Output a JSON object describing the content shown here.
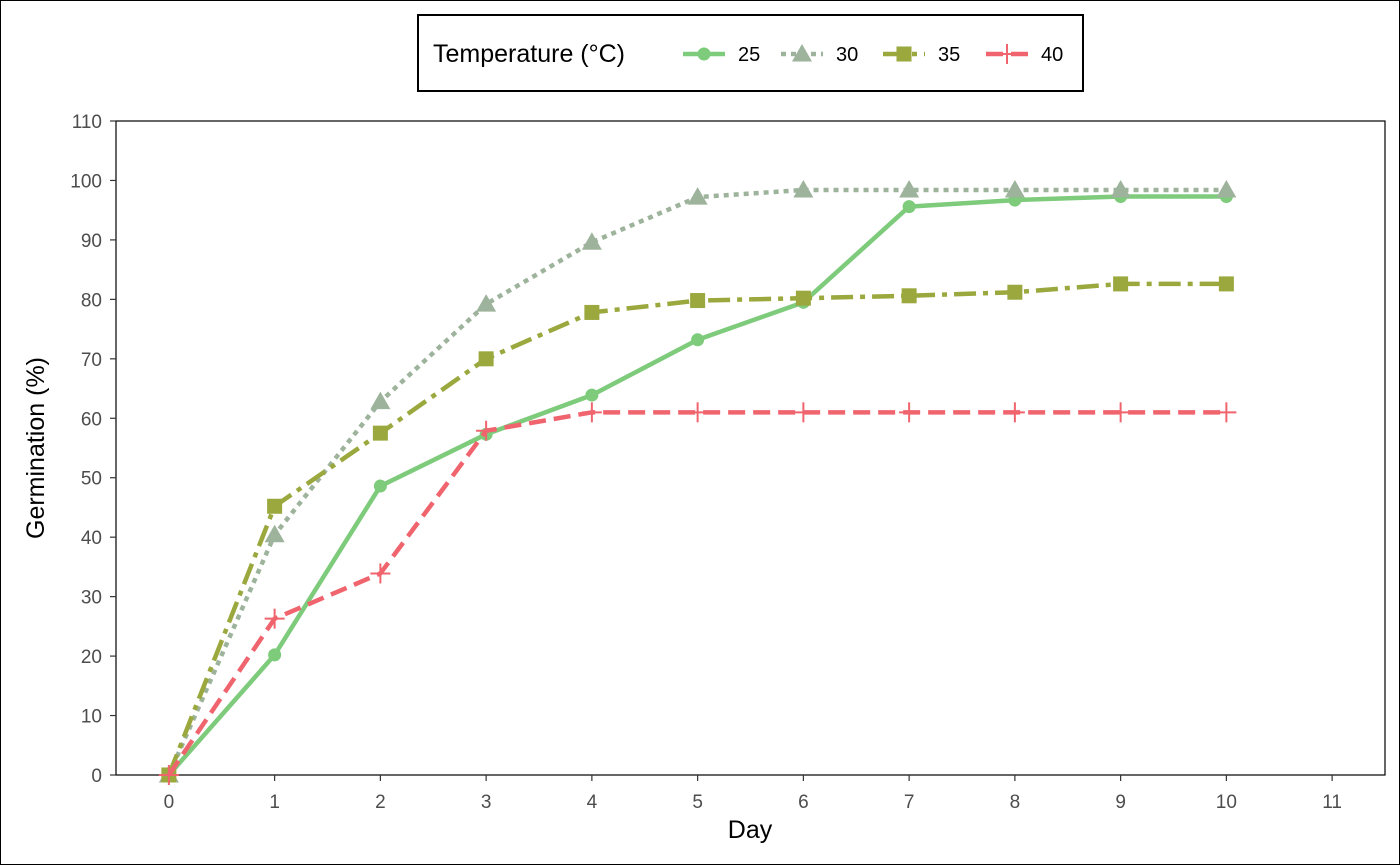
{
  "chart_data": {
    "type": "line",
    "xlabel": "Day",
    "ylabel": "Germination (%)",
    "xlim": [
      -0.5,
      11.5
    ],
    "ylim": [
      0,
      110
    ],
    "x_ticks": [
      0,
      1,
      2,
      3,
      4,
      5,
      6,
      7,
      8,
      9,
      10,
      11
    ],
    "y_ticks": [
      0,
      10,
      20,
      30,
      40,
      50,
      60,
      70,
      80,
      90,
      100,
      110
    ],
    "grid": false,
    "legend": {
      "title": "Temperature (°C)",
      "position": "top"
    },
    "x": [
      0,
      1,
      2,
      3,
      4,
      5,
      6,
      7,
      8,
      9,
      10
    ],
    "series": [
      {
        "name": "25",
        "color": "#7dcb7b",
        "dash": "solid",
        "marker": "circle",
        "values": [
          0,
          20.2,
          48.6,
          57.3,
          63.9,
          73.2,
          79.5,
          95.6,
          96.7,
          97.3,
          97.3
        ]
      },
      {
        "name": "30",
        "color": "#9db39b",
        "dash": "dotted",
        "marker": "triangle",
        "values": [
          0,
          40.4,
          62.8,
          79.2,
          89.6,
          97.2,
          98.4,
          98.4,
          98.4,
          98.4,
          98.4
        ]
      },
      {
        "name": "35",
        "color": "#9aa83d",
        "dash": "dashed-dot",
        "marker": "square",
        "values": [
          0,
          45.2,
          57.5,
          70.0,
          77.8,
          79.8,
          80.2,
          80.6,
          81.2,
          82.6,
          82.6
        ]
      },
      {
        "name": "40",
        "color": "#f0646e",
        "dash": "dashed",
        "marker": "plus",
        "values": [
          0,
          26.3,
          33.9,
          57.9,
          61.0,
          61.0,
          61.0,
          61.0,
          61.0,
          61.0,
          61.0
        ]
      }
    ]
  }
}
